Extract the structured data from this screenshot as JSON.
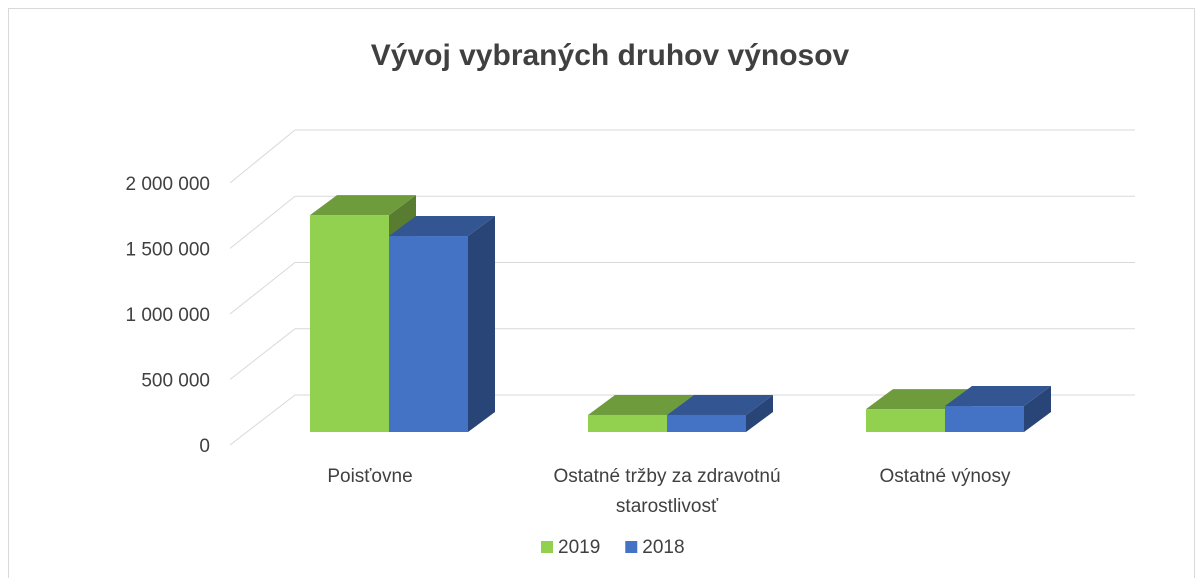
{
  "chart_data": {
    "type": "bar3d",
    "title": "Vývoj vybraných druhov výnosov",
    "categories": [
      "Poisťovne",
      "Ostatné tržby za zdravotnú starostlivosť",
      "Ostatné výnosy"
    ],
    "series": [
      {
        "name": "2019",
        "color": "#92d050",
        "values": [
          1656000,
          130000,
          175000
        ]
      },
      {
        "name": "2018",
        "color": "#4472c4",
        "values": [
          1496000,
          130000,
          198000
        ]
      }
    ],
    "ylim": [
      0,
      2000000
    ],
    "yticks": [
      0,
      {
        "value": 500000,
        "label": "500 000"
      },
      {
        "value": 1000000,
        "label": "1 000 000"
      },
      {
        "value": 1500000,
        "label": "1 500 000"
      },
      {
        "value": 2000000,
        "label": "2 000 000"
      }
    ],
    "grid": true,
    "legend": "bottom"
  }
}
